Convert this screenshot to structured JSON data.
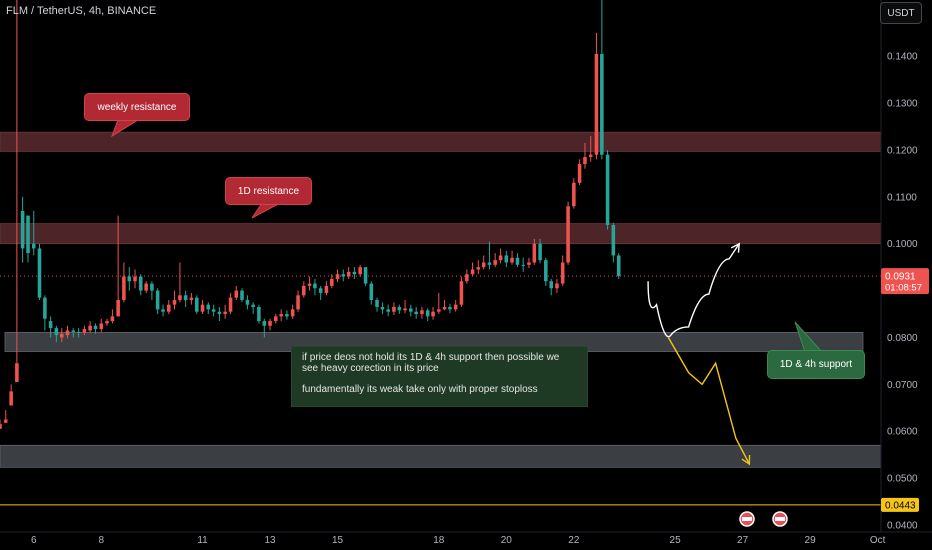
{
  "header": {
    "symbol_label": "FLM / TetherUS, 4h, BINANCE",
    "currency_label": "USDT"
  },
  "annotations": {
    "weekly_resistance": "weekly resistance",
    "d1_resistance": "1D resistance",
    "support": "1D & 4h support",
    "note_line1": "if price deos not hold its 1D & 4h support then possible we see heavy corection in its price",
    "note_line2": "fundamentally its weak take only with proper stoploss"
  },
  "price_badge": {
    "value": "0.0931",
    "countdown": "01:08:57"
  },
  "level_badge": {
    "value": "0.0443"
  },
  "colors": {
    "up": "#26a69a",
    "down": "#ef5350",
    "resistance_zone": "#5a2a2e",
    "support_zone": "#4a4d52",
    "note_bg": "#1e3a24",
    "level_line": "#f5c518",
    "price_line": "#ef5350",
    "callout_red": "#b22833",
    "callout_green": "#2b6a3e"
  },
  "chart_data": {
    "type": "candlestick",
    "title": "FLM / TetherUS, 4h, BINANCE",
    "y_ticks": [
      "0.1400",
      "0.1300",
      "0.1200",
      "0.1100",
      "0.1000",
      "0.0800",
      "0.0700",
      "0.0600",
      "0.0500",
      "0.0400"
    ],
    "y_tick_values": [
      0.14,
      0.13,
      0.12,
      0.11,
      0.1,
      0.08,
      0.07,
      0.06,
      0.05,
      0.04
    ],
    "ylim": [
      0.0385,
      0.152
    ],
    "x_ticks": [
      "6",
      "8",
      "11",
      "13",
      "15",
      "18",
      "20",
      "22",
      "25",
      "27",
      "29",
      "Oct"
    ],
    "x_tick_values": [
      6,
      8,
      11,
      13,
      15,
      18,
      20,
      22,
      25,
      27,
      29,
      31
    ],
    "xlim": [
      5,
      31.1
    ],
    "current_price": 0.0931,
    "horizontal_level": 0.0443,
    "zones": [
      {
        "name": "weekly resistance",
        "from": 0.1197,
        "to": 0.1238
      },
      {
        "name": "1D resistance",
        "from": 0.1,
        "to": 0.1043
      },
      {
        "name": "1D & 4h support",
        "from": 0.077,
        "to": 0.0811
      },
      {
        "name": "lower support",
        "from": 0.0523,
        "to": 0.057
      }
    ],
    "projections": [
      {
        "name": "bullish path",
        "color": "#ffffff",
        "points": [
          [
            24.2,
            0.092
          ],
          [
            24.7,
            0.082
          ],
          [
            25.1,
            0.0795
          ],
          [
            25.7,
            0.085
          ],
          [
            26.3,
            0.0935
          ],
          [
            26.9,
            0.1
          ]
        ]
      },
      {
        "name": "bearish path",
        "color": "#f5c518",
        "points": [
          [
            24.8,
            0.08
          ],
          [
            25.4,
            0.0725
          ],
          [
            25.8,
            0.07
          ],
          [
            26.2,
            0.0745
          ],
          [
            26.8,
            0.0585
          ],
          [
            27.2,
            0.053
          ]
        ]
      }
    ],
    "candles": [
      [
        5.0,
        0.0615,
        0.0625,
        0.0605,
        0.0605
      ],
      [
        5.17,
        0.0625,
        0.0645,
        0.0618,
        0.0618
      ],
      [
        5.33,
        0.0685,
        0.07,
        0.0655,
        0.0655
      ],
      [
        5.5,
        0.0745,
        0.152,
        0.0705,
        0.0705
      ],
      [
        5.67,
        0.099,
        0.11,
        0.096,
        0.107
      ],
      [
        5.83,
        0.098,
        0.106,
        0.096,
        0.106
      ],
      [
        6.0,
        0.099,
        0.107,
        0.0975,
        0.1
      ],
      [
        6.17,
        0.0885,
        0.1,
        0.088,
        0.099
      ],
      [
        6.33,
        0.084,
        0.089,
        0.0815,
        0.0885
      ],
      [
        6.5,
        0.082,
        0.0845,
        0.08,
        0.0835
      ],
      [
        6.67,
        0.0805,
        0.0825,
        0.079,
        0.082
      ],
      [
        6.83,
        0.0808,
        0.082,
        0.079,
        0.08
      ],
      [
        7.0,
        0.0815,
        0.0825,
        0.0798,
        0.0805
      ],
      [
        7.17,
        0.0812,
        0.082,
        0.08,
        0.0815
      ],
      [
        7.33,
        0.081,
        0.082,
        0.08,
        0.0812
      ],
      [
        7.5,
        0.0818,
        0.0825,
        0.0805,
        0.081
      ],
      [
        7.67,
        0.0825,
        0.0835,
        0.081,
        0.0815
      ],
      [
        7.83,
        0.0818,
        0.083,
        0.0808,
        0.0825
      ],
      [
        8.0,
        0.083,
        0.084,
        0.0812,
        0.0818
      ],
      [
        8.17,
        0.0835,
        0.084,
        0.0825,
        0.083
      ],
      [
        8.33,
        0.0845,
        0.086,
        0.083,
        0.0835
      ],
      [
        8.5,
        0.088,
        0.106,
        0.0845,
        0.0845
      ],
      [
        8.67,
        0.093,
        0.096,
        0.0875,
        0.088
      ],
      [
        8.83,
        0.092,
        0.095,
        0.09,
        0.093
      ],
      [
        9.0,
        0.093,
        0.0945,
        0.0905,
        0.092
      ],
      [
        9.17,
        0.09,
        0.0935,
        0.089,
        0.093
      ],
      [
        9.33,
        0.0915,
        0.092,
        0.0895,
        0.09
      ],
      [
        9.5,
        0.09,
        0.092,
        0.088,
        0.0915
      ],
      [
        9.67,
        0.086,
        0.0905,
        0.085,
        0.09
      ],
      [
        9.83,
        0.0855,
        0.087,
        0.0845,
        0.086
      ],
      [
        10.0,
        0.087,
        0.088,
        0.085,
        0.0855
      ],
      [
        10.17,
        0.088,
        0.09,
        0.086,
        0.087
      ],
      [
        10.33,
        0.089,
        0.096,
        0.0875,
        0.088
      ],
      [
        10.5,
        0.088,
        0.09,
        0.0865,
        0.089
      ],
      [
        10.67,
        0.0885,
        0.0895,
        0.087,
        0.088
      ],
      [
        10.83,
        0.0855,
        0.089,
        0.085,
        0.0885
      ],
      [
        11.0,
        0.087,
        0.088,
        0.085,
        0.0855
      ],
      [
        11.17,
        0.086,
        0.0875,
        0.085,
        0.087
      ],
      [
        11.33,
        0.0855,
        0.087,
        0.0845,
        0.086
      ],
      [
        11.5,
        0.085,
        0.0865,
        0.0835,
        0.0855
      ],
      [
        11.67,
        0.0855,
        0.087,
        0.084,
        0.085
      ],
      [
        11.83,
        0.0885,
        0.0895,
        0.085,
        0.0855
      ],
      [
        12.0,
        0.09,
        0.091,
        0.088,
        0.0885
      ],
      [
        12.17,
        0.088,
        0.0905,
        0.0875,
        0.09
      ],
      [
        12.33,
        0.087,
        0.089,
        0.086,
        0.088
      ],
      [
        12.5,
        0.0865,
        0.0875,
        0.085,
        0.087
      ],
      [
        12.67,
        0.0835,
        0.087,
        0.083,
        0.0865
      ],
      [
        12.83,
        0.0825,
        0.084,
        0.08,
        0.0835
      ],
      [
        13.0,
        0.0835,
        0.084,
        0.0815,
        0.0825
      ],
      [
        13.17,
        0.0845,
        0.085,
        0.083,
        0.0835
      ],
      [
        13.33,
        0.085,
        0.086,
        0.0835,
        0.0845
      ],
      [
        13.5,
        0.0845,
        0.0858,
        0.0838,
        0.085
      ],
      [
        13.67,
        0.086,
        0.087,
        0.084,
        0.0845
      ],
      [
        13.83,
        0.089,
        0.09,
        0.0855,
        0.086
      ],
      [
        14.0,
        0.091,
        0.092,
        0.0885,
        0.089
      ],
      [
        14.17,
        0.0915,
        0.093,
        0.09,
        0.091
      ],
      [
        14.33,
        0.0905,
        0.0925,
        0.089,
        0.0915
      ],
      [
        14.5,
        0.0895,
        0.091,
        0.088,
        0.0905
      ],
      [
        14.67,
        0.091,
        0.092,
        0.089,
        0.0895
      ],
      [
        14.83,
        0.0925,
        0.0935,
        0.0905,
        0.091
      ],
      [
        15.0,
        0.0935,
        0.0945,
        0.0918,
        0.0925
      ],
      [
        15.17,
        0.093,
        0.0945,
        0.092,
        0.0935
      ],
      [
        15.33,
        0.094,
        0.095,
        0.0925,
        0.093
      ],
      [
        15.5,
        0.0935,
        0.095,
        0.0925,
        0.094
      ],
      [
        15.67,
        0.095,
        0.0955,
        0.093,
        0.0935
      ],
      [
        15.83,
        0.0915,
        0.095,
        0.091,
        0.095
      ],
      [
        16.0,
        0.088,
        0.092,
        0.087,
        0.0915
      ],
      [
        16.17,
        0.0865,
        0.0885,
        0.0855,
        0.088
      ],
      [
        16.33,
        0.086,
        0.0875,
        0.085,
        0.0865
      ],
      [
        16.5,
        0.0855,
        0.087,
        0.0845,
        0.086
      ],
      [
        16.67,
        0.0865,
        0.0875,
        0.0848,
        0.0855
      ],
      [
        16.83,
        0.0858,
        0.087,
        0.085,
        0.0865
      ],
      [
        17.0,
        0.0862,
        0.088,
        0.0852,
        0.0858
      ],
      [
        17.17,
        0.0855,
        0.087,
        0.0845,
        0.0862
      ],
      [
        17.33,
        0.085,
        0.0865,
        0.084,
        0.0855
      ],
      [
        17.5,
        0.0858,
        0.0865,
        0.084,
        0.085
      ],
      [
        17.67,
        0.0845,
        0.0862,
        0.0835,
        0.0858
      ],
      [
        17.83,
        0.0855,
        0.0865,
        0.0838,
        0.0845
      ],
      [
        18.0,
        0.086,
        0.0895,
        0.085,
        0.0855
      ],
      [
        18.17,
        0.0865,
        0.088,
        0.0858,
        0.086
      ],
      [
        18.33,
        0.086,
        0.0872,
        0.0852,
        0.0865
      ],
      [
        18.5,
        0.087,
        0.088,
        0.0855,
        0.086
      ],
      [
        18.67,
        0.092,
        0.093,
        0.0865,
        0.087
      ],
      [
        18.83,
        0.0935,
        0.0945,
        0.0915,
        0.092
      ],
      [
        19.0,
        0.0945,
        0.096,
        0.093,
        0.0935
      ],
      [
        19.17,
        0.095,
        0.0965,
        0.0935,
        0.0945
      ],
      [
        19.33,
        0.096,
        0.0975,
        0.0945,
        0.095
      ],
      [
        19.5,
        0.0955,
        0.1005,
        0.0945,
        0.096
      ],
      [
        19.67,
        0.0965,
        0.098,
        0.095,
        0.0955
      ],
      [
        19.83,
        0.0975,
        0.099,
        0.0958,
        0.0965
      ],
      [
        20.0,
        0.096,
        0.0985,
        0.095,
        0.0975
      ],
      [
        20.17,
        0.097,
        0.0985,
        0.0955,
        0.096
      ],
      [
        20.33,
        0.0955,
        0.098,
        0.095,
        0.097
      ],
      [
        20.5,
        0.0955,
        0.097,
        0.094,
        0.0955
      ],
      [
        20.67,
        0.096,
        0.097,
        0.0948,
        0.0955
      ],
      [
        20.83,
        0.1,
        0.101,
        0.0955,
        0.096
      ],
      [
        21.0,
        0.0965,
        0.101,
        0.0958,
        0.1
      ],
      [
        21.17,
        0.092,
        0.097,
        0.091,
        0.0965
      ],
      [
        21.33,
        0.0905,
        0.0925,
        0.089,
        0.092
      ],
      [
        21.5,
        0.0915,
        0.0925,
        0.0895,
        0.0905
      ],
      [
        21.67,
        0.096,
        0.0975,
        0.091,
        0.0915
      ],
      [
        21.83,
        0.108,
        0.109,
        0.0955,
        0.096
      ],
      [
        22.0,
        0.113,
        0.114,
        0.1075,
        0.108
      ],
      [
        22.17,
        0.117,
        0.118,
        0.1125,
        0.113
      ],
      [
        22.33,
        0.1185,
        0.1215,
        0.116,
        0.117
      ],
      [
        22.5,
        0.119,
        0.123,
        0.1175,
        0.1185
      ],
      [
        22.67,
        0.1405,
        0.145,
        0.118,
        0.119
      ],
      [
        22.83,
        0.119,
        0.152,
        0.118,
        0.1405
      ],
      [
        23.0,
        0.104,
        0.12,
        0.103,
        0.119
      ],
      [
        23.17,
        0.0975,
        0.1045,
        0.096,
        0.104
      ],
      [
        23.33,
        0.0931,
        0.098,
        0.0925,
        0.0975
      ]
    ]
  }
}
